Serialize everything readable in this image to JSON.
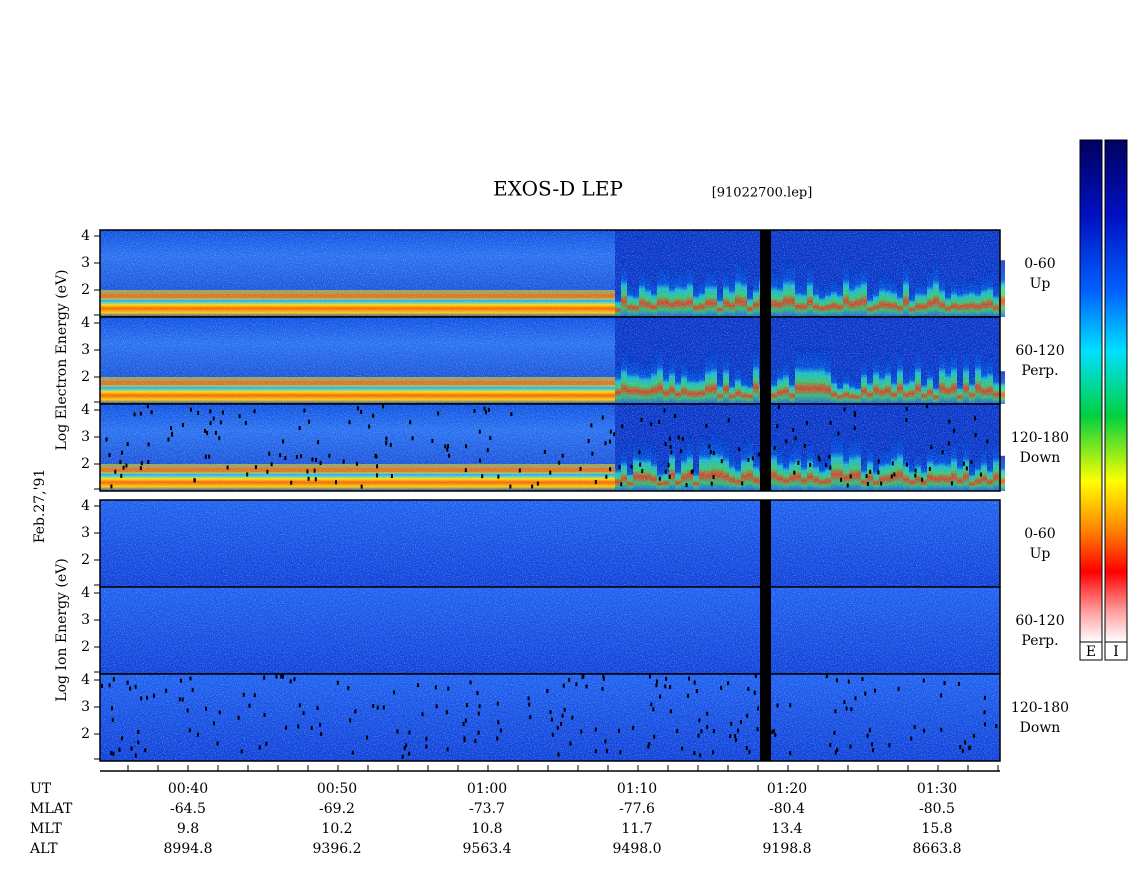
{
  "header": {
    "title": "EXOS-D LEP",
    "file": "[91022700.lep]"
  },
  "left_labels": {
    "electron": "Log  Electron  Energy (eV)",
    "date": "Feb.27,'91",
    "ion": "Log  Ion  Energy (eV)"
  },
  "electron": {
    "panels": [
      {
        "range": "0-60",
        "direction": "Up",
        "ticks": [
          "4",
          "3",
          "2"
        ]
      },
      {
        "range": "60-120",
        "direction": "Perp.",
        "ticks": [
          "4",
          "3",
          "2"
        ]
      },
      {
        "range": "120-180",
        "direction": "Down",
        "ticks": [
          "4",
          "3",
          "2"
        ]
      }
    ]
  },
  "ion": {
    "panels": [
      {
        "range": "0-60",
        "direction": "Up",
        "ticks": [
          "4",
          "3",
          "2"
        ]
      },
      {
        "range": "60-120",
        "direction": "Perp.",
        "ticks": [
          "4",
          "3",
          "2"
        ]
      },
      {
        "range": "120-180",
        "direction": "Down",
        "ticks": [
          "4",
          "3",
          "2"
        ]
      }
    ]
  },
  "x_axis": {
    "rows": [
      [
        "UT",
        "00:40",
        "00:50",
        "01:00",
        "01:10",
        "01:20",
        "01:30"
      ],
      [
        "MLAT",
        "-64.5",
        "-69.2",
        "-73.7",
        "-77.6",
        "-80.4",
        "-80.5"
      ],
      [
        "MLT",
        "9.8",
        "10.2",
        "10.8",
        "11.7",
        "13.4",
        "15.8"
      ],
      [
        "ALT",
        "8994.8",
        "9396.2",
        "9563.4",
        "9498.0",
        "9198.8",
        "8663.8"
      ]
    ]
  },
  "colorbars": [
    "E",
    "I"
  ]
}
